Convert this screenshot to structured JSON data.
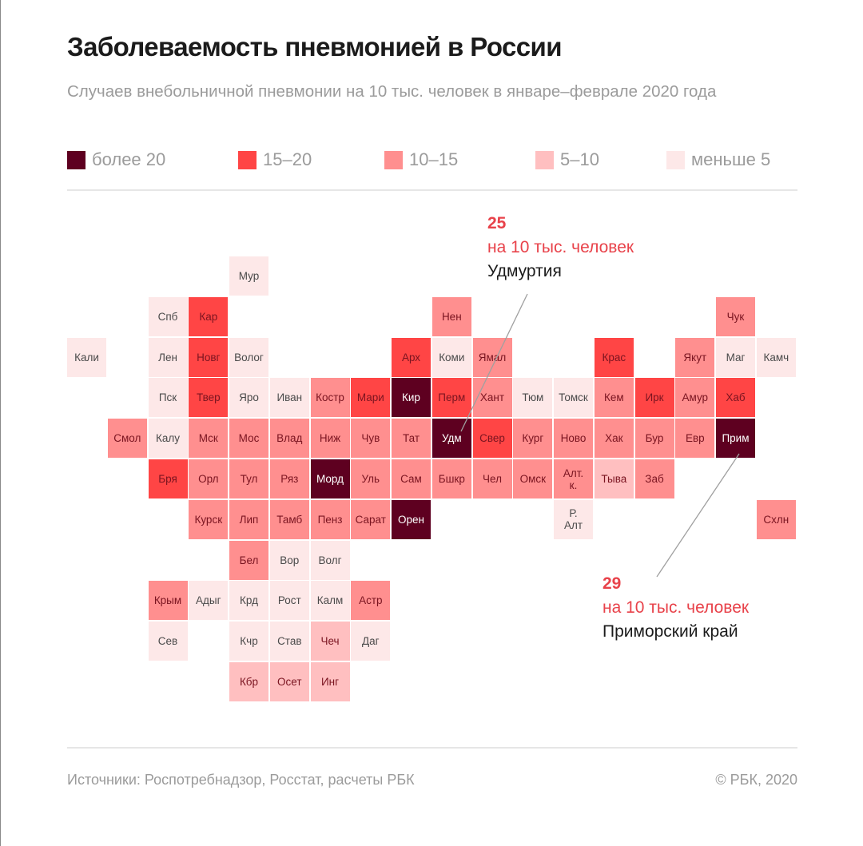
{
  "header": {
    "title": "Заболеваемость пневмонией в России",
    "subtitle": "Случаев внебольничной пневмонии на 10 тыс. человек в январе–феврале 2020 года"
  },
  "colors": {
    "cat5": "#5e0020",
    "cat4": "#ff4545",
    "cat3": "#ff8f8f",
    "cat2": "#ffbfc0",
    "cat1": "#fde8e8",
    "accent": "#e8424a",
    "text_dark": "#1b1b1b",
    "text_muted": "#9b9b9b",
    "tile_text_dark": "#7a1420",
    "tile_text_light": "#ffffff",
    "tile_text_neutral": "#4a4a4a"
  },
  "chart_data": {
    "type": "heatmap",
    "title": "Заболеваемость пневмонией в России",
    "subtitle": "Случаев внебольничной пневмонии на 10 тыс. человек в январе–феврале 2020 года",
    "legend": [
      {
        "category": 5,
        "label": "более 20",
        "color": "#5e0020"
      },
      {
        "category": 4,
        "label": "15–20",
        "color": "#ff4545"
      },
      {
        "category": 3,
        "label": "10–15",
        "color": "#ff8f8f"
      },
      {
        "category": 2,
        "label": "5–10",
        "color": "#ffbfc0"
      },
      {
        "category": 1,
        "label": "меньше 5",
        "color": "#fde8e8"
      }
    ],
    "legend_position": "top",
    "grid_note": "tile-grid cartogram; col and row are grid cells (0-based)",
    "regions": [
      {
        "label": "Мур",
        "col": 4,
        "row": 0,
        "category": 1
      },
      {
        "label": "Спб",
        "col": 2,
        "row": 1,
        "category": 1
      },
      {
        "label": "Кар",
        "col": 3,
        "row": 1,
        "category": 4
      },
      {
        "label": "Нен",
        "col": 9,
        "row": 1,
        "category": 3
      },
      {
        "label": "Чук",
        "col": 16,
        "row": 1,
        "category": 3
      },
      {
        "label": "Кали",
        "col": 0,
        "row": 2,
        "category": 1
      },
      {
        "label": "Лен",
        "col": 2,
        "row": 2,
        "category": 1
      },
      {
        "label": "Новг",
        "col": 3,
        "row": 2,
        "category": 4
      },
      {
        "label": "Волог",
        "col": 4,
        "row": 2,
        "category": 1
      },
      {
        "label": "Арх",
        "col": 8,
        "row": 2,
        "category": 4
      },
      {
        "label": "Коми",
        "col": 9,
        "row": 2,
        "category": 1
      },
      {
        "label": "Ямал",
        "col": 10,
        "row": 2,
        "category": 3
      },
      {
        "label": "Крас",
        "col": 13,
        "row": 2,
        "category": 4
      },
      {
        "label": "Якут",
        "col": 15,
        "row": 2,
        "category": 3
      },
      {
        "label": "Маг",
        "col": 16,
        "row": 2,
        "category": 1
      },
      {
        "label": "Камч",
        "col": 17,
        "row": 2,
        "category": 1
      },
      {
        "label": "Пск",
        "col": 2,
        "row": 3,
        "category": 1
      },
      {
        "label": "Твер",
        "col": 3,
        "row": 3,
        "category": 4
      },
      {
        "label": "Яро",
        "col": 4,
        "row": 3,
        "category": 1
      },
      {
        "label": "Иван",
        "col": 5,
        "row": 3,
        "category": 1
      },
      {
        "label": "Костр",
        "col": 6,
        "row": 3,
        "category": 3
      },
      {
        "label": "Мари",
        "col": 7,
        "row": 3,
        "category": 4
      },
      {
        "label": "Кир",
        "col": 8,
        "row": 3,
        "category": 5
      },
      {
        "label": "Перм",
        "col": 9,
        "row": 3,
        "category": 4
      },
      {
        "label": "Хант",
        "col": 10,
        "row": 3,
        "category": 3
      },
      {
        "label": "Тюм",
        "col": 11,
        "row": 3,
        "category": 1
      },
      {
        "label": "Томск",
        "col": 12,
        "row": 3,
        "category": 1
      },
      {
        "label": "Кем",
        "col": 13,
        "row": 3,
        "category": 3
      },
      {
        "label": "Ирк",
        "col": 14,
        "row": 3,
        "category": 4
      },
      {
        "label": "Амур",
        "col": 15,
        "row": 3,
        "category": 3
      },
      {
        "label": "Хаб",
        "col": 16,
        "row": 3,
        "category": 4
      },
      {
        "label": "Смол",
        "col": 1,
        "row": 4,
        "category": 3
      },
      {
        "label": "Калу",
        "col": 2,
        "row": 4,
        "category": 1
      },
      {
        "label": "Мск",
        "col": 3,
        "row": 4,
        "category": 3
      },
      {
        "label": "Мос",
        "col": 4,
        "row": 4,
        "category": 3
      },
      {
        "label": "Влад",
        "col": 5,
        "row": 4,
        "category": 3
      },
      {
        "label": "Ниж",
        "col": 6,
        "row": 4,
        "category": 3
      },
      {
        "label": "Чув",
        "col": 7,
        "row": 4,
        "category": 3
      },
      {
        "label": "Тат",
        "col": 8,
        "row": 4,
        "category": 3
      },
      {
        "label": "Удм",
        "col": 9,
        "row": 4,
        "category": 5
      },
      {
        "label": "Свер",
        "col": 10,
        "row": 4,
        "category": 4
      },
      {
        "label": "Кург",
        "col": 11,
        "row": 4,
        "category": 3
      },
      {
        "label": "Ново",
        "col": 12,
        "row": 4,
        "category": 3
      },
      {
        "label": "Хак",
        "col": 13,
        "row": 4,
        "category": 3
      },
      {
        "label": "Бур",
        "col": 14,
        "row": 4,
        "category": 3
      },
      {
        "label": "Евр",
        "col": 15,
        "row": 4,
        "category": 3
      },
      {
        "label": "Прим",
        "col": 16,
        "row": 4,
        "category": 5
      },
      {
        "label": "Бря",
        "col": 2,
        "row": 5,
        "category": 4
      },
      {
        "label": "Орл",
        "col": 3,
        "row": 5,
        "category": 3
      },
      {
        "label": "Тул",
        "col": 4,
        "row": 5,
        "category": 3
      },
      {
        "label": "Ряз",
        "col": 5,
        "row": 5,
        "category": 3
      },
      {
        "label": "Морд",
        "col": 6,
        "row": 5,
        "category": 5
      },
      {
        "label": "Уль",
        "col": 7,
        "row": 5,
        "category": 3
      },
      {
        "label": "Сам",
        "col": 8,
        "row": 5,
        "category": 3
      },
      {
        "label": "Бшкр",
        "col": 9,
        "row": 5,
        "category": 3
      },
      {
        "label": "Чел",
        "col": 10,
        "row": 5,
        "category": 3
      },
      {
        "label": "Омск",
        "col": 11,
        "row": 5,
        "category": 3
      },
      {
        "label": "Алт.\nк.",
        "col": 12,
        "row": 5,
        "category": 3
      },
      {
        "label": "Тыва",
        "col": 13,
        "row": 5,
        "category": 2
      },
      {
        "label": "Заб",
        "col": 14,
        "row": 5,
        "category": 3
      },
      {
        "label": "Курск",
        "col": 3,
        "row": 6,
        "category": 3
      },
      {
        "label": "Лип",
        "col": 4,
        "row": 6,
        "category": 3
      },
      {
        "label": "Тамб",
        "col": 5,
        "row": 6,
        "category": 3
      },
      {
        "label": "Пенз",
        "col": 6,
        "row": 6,
        "category": 3
      },
      {
        "label": "Сарат",
        "col": 7,
        "row": 6,
        "category": 3
      },
      {
        "label": "Орен",
        "col": 8,
        "row": 6,
        "category": 5
      },
      {
        "label": "Р.\nАлт",
        "col": 12,
        "row": 6,
        "category": 1
      },
      {
        "label": "Схлн",
        "col": 17,
        "row": 6,
        "category": 3
      },
      {
        "label": "Бел",
        "col": 4,
        "row": 7,
        "category": 3
      },
      {
        "label": "Вор",
        "col": 5,
        "row": 7,
        "category": 1
      },
      {
        "label": "Волг",
        "col": 6,
        "row": 7,
        "category": 1
      },
      {
        "label": "Крым",
        "col": 2,
        "row": 8,
        "category": 3
      },
      {
        "label": "Адыг",
        "col": 3,
        "row": 8,
        "category": 1
      },
      {
        "label": "Крд",
        "col": 4,
        "row": 8,
        "category": 1
      },
      {
        "label": "Рост",
        "col": 5,
        "row": 8,
        "category": 1
      },
      {
        "label": "Калм",
        "col": 6,
        "row": 8,
        "category": 1
      },
      {
        "label": "Астр",
        "col": 7,
        "row": 8,
        "category": 3
      },
      {
        "label": "Сев",
        "col": 2,
        "row": 9,
        "category": 1
      },
      {
        "label": "Кчр",
        "col": 4,
        "row": 9,
        "category": 1
      },
      {
        "label": "Став",
        "col": 5,
        "row": 9,
        "category": 1
      },
      {
        "label": "Чеч",
        "col": 6,
        "row": 9,
        "category": 2
      },
      {
        "label": "Даг",
        "col": 7,
        "row": 9,
        "category": 1
      },
      {
        "label": "Кбр",
        "col": 4,
        "row": 10,
        "category": 2
      },
      {
        "label": "Осет",
        "col": 5,
        "row": 10,
        "category": 2
      },
      {
        "label": "Инг",
        "col": 6,
        "row": 10,
        "category": 2
      }
    ],
    "annotations": [
      {
        "value": "25",
        "unit": "на 10 тыс. человек",
        "region": "Удмуртия",
        "target": "Удм"
      },
      {
        "value": "29",
        "unit": "на 10 тыс. человек",
        "region": "Приморский край",
        "target": "Прим"
      }
    ]
  },
  "footer": {
    "sources": "Источники: Роспотребнадзор, Росстат, расчеты РБК",
    "copyright": "© РБК, 2020"
  }
}
